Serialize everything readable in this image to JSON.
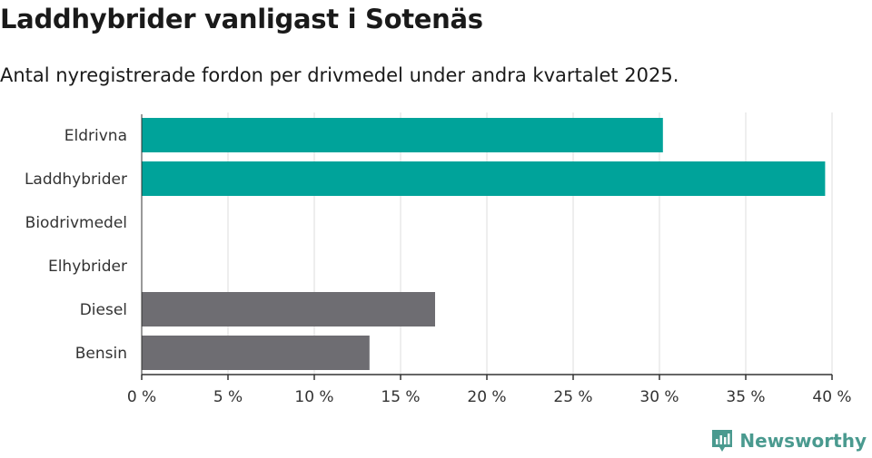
{
  "header": {
    "title": "Laddhybrider vanligast i Sotenäs",
    "subtitle": "Antal nyregistrerade fordon per drivmedel under andra kvartalet 2025."
  },
  "brand": {
    "name": "Newsworthy",
    "icon": "newsworthy-logo-icon",
    "color": "#4a9a8f"
  },
  "chart_data": {
    "type": "bar",
    "orientation": "horizontal",
    "title": "",
    "xlabel": "",
    "ylabel": "",
    "categories": [
      "Eldrivna",
      "Laddhybrider",
      "Biodrivmedel",
      "Elhybrider",
      "Diesel",
      "Bensin"
    ],
    "values": [
      30.2,
      39.6,
      0,
      0,
      17.0,
      13.2
    ],
    "colors": [
      "#00a39a",
      "#00a39a",
      "#00a39a",
      "#00a39a",
      "#6e6d72",
      "#6e6d72"
    ],
    "xlim": [
      0,
      40
    ],
    "xticks": [
      0,
      5,
      10,
      15,
      20,
      25,
      30,
      35,
      40
    ],
    "tick_labels": [
      "0 %",
      "5 %",
      "10 %",
      "15 %",
      "20 %",
      "25 %",
      "30 %",
      "35 %",
      "40 %"
    ],
    "grid": true,
    "legend": "none"
  }
}
